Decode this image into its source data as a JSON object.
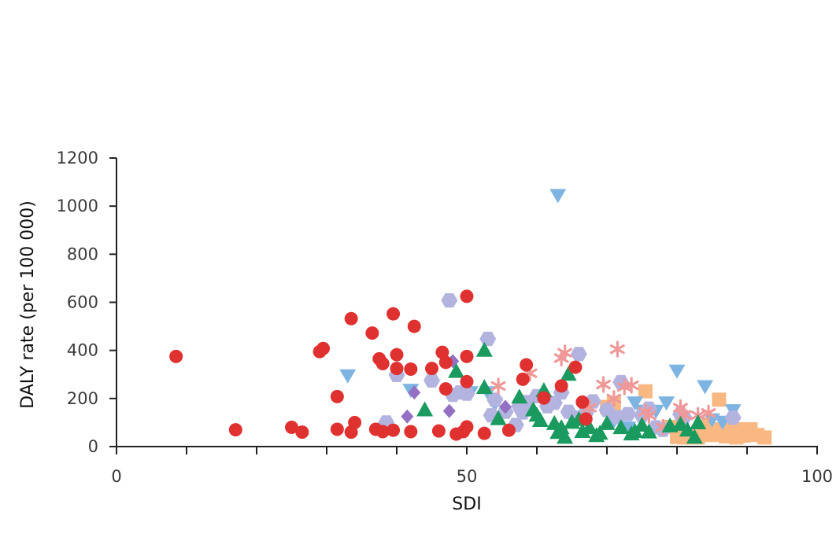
{
  "chart_data": {
    "type": "scatter",
    "title": "",
    "xlabel": "SDI",
    "ylabel": "DALY rate (per 100 000)",
    "xlim": [
      0,
      100
    ],
    "ylim": [
      0,
      1200
    ],
    "x_tick_labels": [
      "0",
      "50",
      "100"
    ],
    "x_tick_values": [
      0,
      50,
      100
    ],
    "x_minor_ticks": [
      10,
      20,
      30,
      40,
      60,
      70,
      80,
      90
    ],
    "y_tick_labels": [
      "0",
      "200",
      "400",
      "600",
      "800",
      "1000",
      "1200"
    ],
    "y_tick_values": [
      0,
      200,
      400,
      600,
      800,
      1000,
      1200
    ],
    "grid": false,
    "legend": "none",
    "series": [
      {
        "marker": "circle",
        "color": "#e03131",
        "points": [
          [
            8.5,
            375
          ],
          [
            17,
            70
          ],
          [
            25,
            80
          ],
          [
            26.5,
            60
          ],
          [
            29,
            395
          ],
          [
            29.5,
            408
          ],
          [
            31.5,
            208
          ],
          [
            31.5,
            72
          ],
          [
            33.5,
            532
          ],
          [
            33.5,
            60
          ],
          [
            34,
            100
          ],
          [
            36.5,
            472
          ],
          [
            37,
            72
          ],
          [
            37.5,
            365
          ],
          [
            38,
            345
          ],
          [
            38,
            62
          ],
          [
            39.5,
            552
          ],
          [
            39.5,
            68
          ],
          [
            40,
            382
          ],
          [
            40,
            325
          ],
          [
            42,
            322
          ],
          [
            42,
            62
          ],
          [
            42.5,
            500
          ],
          [
            45,
            325
          ],
          [
            46,
            65
          ],
          [
            46.5,
            392
          ],
          [
            47,
            350
          ],
          [
            47,
            240
          ],
          [
            48.5,
            52
          ],
          [
            49.5,
            62
          ],
          [
            50,
            625
          ],
          [
            50,
            375
          ],
          [
            50,
            82
          ],
          [
            50,
            270
          ],
          [
            52.5,
            55
          ],
          [
            56,
            68
          ],
          [
            58,
            280
          ],
          [
            58.5,
            340
          ],
          [
            61,
            202
          ],
          [
            63.5,
            252
          ],
          [
            65.5,
            330
          ],
          [
            66.5,
            185
          ],
          [
            67,
            115
          ]
        ]
      },
      {
        "marker": "hexagon",
        "color": "#b3b3e0",
        "points": [
          [
            38.5,
            100
          ],
          [
            40,
            298
          ],
          [
            45,
            275
          ],
          [
            47.5,
            608
          ],
          [
            48,
            215
          ],
          [
            49,
            225
          ],
          [
            50,
            220
          ],
          [
            53,
            448
          ],
          [
            53.5,
            130
          ],
          [
            54,
            195
          ],
          [
            55.5,
            145
          ],
          [
            57,
            90
          ],
          [
            57.5,
            168
          ],
          [
            58,
            142
          ],
          [
            58.5,
            185
          ],
          [
            60,
            210
          ],
          [
            61.5,
            168
          ],
          [
            62.5,
            182
          ],
          [
            63.5,
            225
          ],
          [
            64.5,
            145
          ],
          [
            65.5,
            120
          ],
          [
            66,
            385
          ],
          [
            66.5,
            120
          ],
          [
            67,
            140
          ],
          [
            68,
            188
          ],
          [
            70,
            152
          ],
          [
            71.5,
            122
          ],
          [
            72,
            268
          ],
          [
            73,
            135
          ],
          [
            75,
            130
          ],
          [
            76,
            158
          ],
          [
            77,
            80
          ],
          [
            78,
            70
          ],
          [
            80.5,
            135
          ],
          [
            81,
            122
          ],
          [
            88,
            120
          ]
        ]
      },
      {
        "marker": "triangle-up",
        "color": "#1a9a5f",
        "points": [
          [
            44,
            152
          ],
          [
            48.5,
            312
          ],
          [
            52.5,
            400
          ],
          [
            52.5,
            245
          ],
          [
            54.5,
            115
          ],
          [
            57.5,
            205
          ],
          [
            59.5,
            152
          ],
          [
            60,
            130
          ],
          [
            60.5,
            108
          ],
          [
            61,
            232
          ],
          [
            62.5,
            95
          ],
          [
            63,
            58
          ],
          [
            63.5,
            78
          ],
          [
            64,
            38
          ],
          [
            64.5,
            300
          ],
          [
            65,
            100
          ],
          [
            66,
            112
          ],
          [
            66.5,
            62
          ],
          [
            67.5,
            78
          ],
          [
            68.5,
            45
          ],
          [
            69,
            55
          ],
          [
            70,
            95
          ],
          [
            72,
            78
          ],
          [
            73.5,
            52
          ],
          [
            74,
            62
          ],
          [
            75,
            88
          ],
          [
            76,
            60
          ],
          [
            79,
            85
          ],
          [
            80.5,
            92
          ],
          [
            81.5,
            68
          ],
          [
            82.5,
            38
          ],
          [
            83,
            98
          ]
        ]
      },
      {
        "marker": "triangle-down",
        "color": "#7eb4e2",
        "points": [
          [
            33,
            295
          ],
          [
            42,
            235
          ],
          [
            50.5,
            225
          ],
          [
            53,
            225
          ],
          [
            54,
            178
          ],
          [
            58,
            162
          ],
          [
            63,
            1045
          ],
          [
            66,
            122
          ],
          [
            67,
            142
          ],
          [
            71,
            108
          ],
          [
            73,
            78
          ],
          [
            74,
            182
          ],
          [
            75,
            148
          ],
          [
            77,
            148
          ],
          [
            78.5,
            182
          ],
          [
            80,
            315
          ],
          [
            84,
            250
          ],
          [
            85,
            112
          ],
          [
            86.5,
            102
          ],
          [
            88,
            150
          ]
        ]
      },
      {
        "marker": "asterisk",
        "color": "#f09898",
        "points": [
          [
            54.5,
            252
          ],
          [
            59,
            305
          ],
          [
            63.5,
            368
          ],
          [
            64,
            390
          ],
          [
            67.5,
            162
          ],
          [
            69.5,
            258
          ],
          [
            71,
            200
          ],
          [
            71.5,
            405
          ],
          [
            72.5,
            248
          ],
          [
            73.5,
            255
          ],
          [
            75.5,
            145
          ],
          [
            76,
            130
          ],
          [
            78,
            80
          ],
          [
            80.5,
            162
          ],
          [
            81,
            132
          ],
          [
            83,
            130
          ],
          [
            84.5,
            140
          ]
        ]
      },
      {
        "marker": "diamond",
        "color": "#9370c3",
        "points": [
          [
            41.5,
            125
          ],
          [
            42.5,
            225
          ],
          [
            47.5,
            148
          ],
          [
            48,
            355
          ],
          [
            55.5,
            165
          ]
        ]
      },
      {
        "marker": "square",
        "color": "#f9b882",
        "points": [
          [
            70,
            165
          ],
          [
            71,
            180
          ],
          [
            75.5,
            230
          ],
          [
            79,
            82
          ],
          [
            80,
            40
          ],
          [
            81,
            38
          ],
          [
            82,
            42
          ],
          [
            83,
            38
          ],
          [
            84,
            52
          ],
          [
            84.5,
            92
          ],
          [
            85,
            48
          ],
          [
            86,
            195
          ],
          [
            86.5,
            72
          ],
          [
            87,
            42
          ],
          [
            87.5,
            95
          ],
          [
            88,
            62
          ],
          [
            88.5,
            38
          ],
          [
            89,
            72
          ],
          [
            89.5,
            45
          ],
          [
            90.5,
            72
          ],
          [
            91.5,
            48
          ],
          [
            92.5,
            38
          ]
        ]
      }
    ]
  }
}
